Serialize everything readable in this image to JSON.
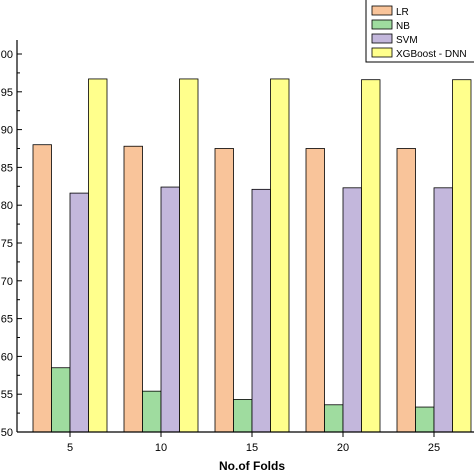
{
  "chart_data": {
    "type": "bar",
    "title": "",
    "xlabel": "No.of Folds",
    "ylabel": "",
    "categories": [
      "5",
      "10",
      "15",
      "20",
      "25"
    ],
    "ylim": [
      50,
      100
    ],
    "yticks": [
      "00",
      "95",
      "90",
      "85",
      "80",
      "75",
      "70",
      "65",
      "60",
      "55",
      "50"
    ],
    "legend_position": "top-right",
    "grid": false,
    "series": [
      {
        "name": "LR",
        "color": "#f9c49a",
        "values": [
          88.0,
          87.8,
          87.5,
          87.5,
          87.5
        ]
      },
      {
        "name": "NB",
        "color": "#9fdc9f",
        "values": [
          58.5,
          55.4,
          54.3,
          53.6,
          53.3
        ]
      },
      {
        "name": "SVM",
        "color": "#c3b7dc",
        "values": [
          81.6,
          82.4,
          82.1,
          82.3,
          82.3
        ]
      },
      {
        "name": "XGBoost - DNN",
        "color": "#ffff8c",
        "values": [
          96.7,
          96.7,
          96.7,
          96.6,
          96.6
        ]
      }
    ]
  }
}
